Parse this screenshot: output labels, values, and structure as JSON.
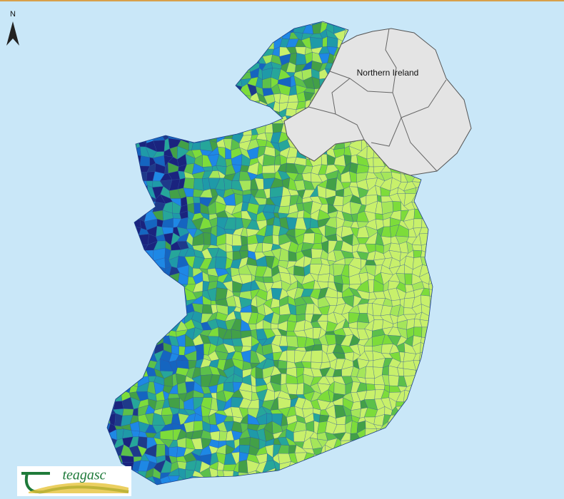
{
  "map": {
    "north_arrow": "N",
    "region_label": "Northern Ireland",
    "logo": {
      "text": "teagasc"
    }
  }
}
